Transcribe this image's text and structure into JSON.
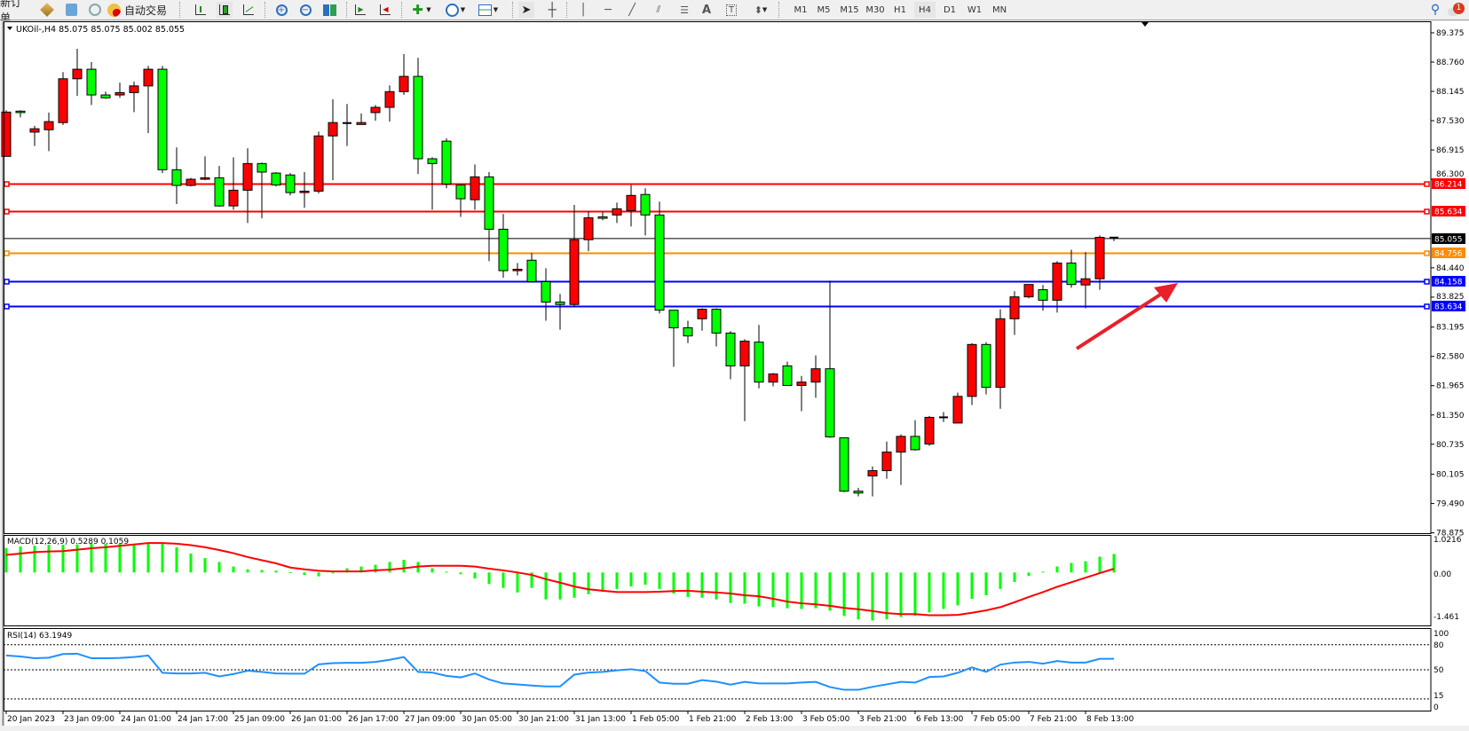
{
  "toolbar": {
    "new_order": "新订单",
    "auto_trading": "自动交易",
    "icons": [
      "metaeditor-icon",
      "data-window-icon",
      "signals-icon",
      "auto-trading-icon",
      "bar-chart-icon",
      "candlestick-icon",
      "line-chart-icon",
      "zoom-in-icon",
      "zoom-out-icon",
      "tile-windows-icon",
      "auto-scroll-icon",
      "chart-shift-icon",
      "indicators-icon",
      "periods-icon",
      "templates-icon",
      "cursor-icon",
      "crosshair-icon",
      "vertical-line-icon",
      "horizontal-line-icon",
      "trendline-icon",
      "equidistant-channel-icon",
      "fibonacci-icon",
      "text-icon",
      "text-label-icon",
      "arrows-icon",
      "search-icon",
      "notifications-icon"
    ],
    "timeframes": [
      "M1",
      "M5",
      "M15",
      "M30",
      "H1",
      "H4",
      "D1",
      "W1",
      "MN"
    ],
    "active_timeframe": "H4",
    "notification_count": "1"
  },
  "chart": {
    "header": "UKOil-,H4  85.075 85.075 85.002 85.055",
    "symbol": "UKOil-",
    "timeframe": "H4",
    "ohlc": {
      "open": 85.075,
      "high": 85.075,
      "low": 85.002,
      "close": 85.055
    },
    "colors": {
      "bull": "#ff0000",
      "bear": "#00ff00",
      "outline": "#000000"
    },
    "price_axis": [
      "89.375",
      "88.760",
      "88.145",
      "87.530",
      "86.915",
      "86.300",
      "84.440",
      "83.825",
      "83.195",
      "82.580",
      "81.965",
      "81.350",
      "80.735",
      "80.105",
      "79.490",
      "78.875"
    ],
    "levels": [
      {
        "price": "86.214",
        "color": "#ff0000"
      },
      {
        "price": "85.634",
        "color": "#ff0000"
      },
      {
        "price": "84.756",
        "color": "#ff8c00"
      },
      {
        "price": "84.158",
        "color": "#0000ff"
      },
      {
        "price": "83.634",
        "color": "#0000ff"
      }
    ],
    "current_price": "85.055",
    "annotation_arrow": {
      "color": "#e8202a",
      "direction": "up-right"
    },
    "time_axis": [
      "20 Jan 2023",
      "23 Jan 09:00",
      "24 Jan 01:00",
      "24 Jan 17:00",
      "25 Jan 09:00",
      "26 Jan 01:00",
      "26 Jan 17:00",
      "27 Jan 09:00",
      "30 Jan 05:00",
      "30 Jan 21:00",
      "31 Jan 13:00",
      "1 Feb 05:00",
      "1 Feb 21:00",
      "2 Feb 13:00",
      "3 Feb 05:00",
      "3 Feb 21:00",
      "6 Feb 13:00",
      "7 Feb 05:00",
      "7 Feb 21:00",
      "8 Feb 13:00"
    ]
  },
  "chart_data": [
    {
      "type": "candlestick",
      "fields": [
        "open",
        "high",
        "low",
        "close"
      ],
      "ylim": [
        78.875,
        89.375
      ],
      "candles": [
        [
          86.78,
          87.75,
          86.78,
          87.71
        ],
        [
          87.73,
          87.75,
          87.6,
          87.7
        ],
        [
          87.29,
          87.42,
          87.0,
          87.36
        ],
        [
          87.34,
          87.7,
          86.89,
          87.51
        ],
        [
          87.49,
          88.55,
          87.44,
          88.41
        ],
        [
          88.41,
          89.04,
          88.05,
          88.61
        ],
        [
          88.61,
          88.76,
          87.86,
          88.07
        ],
        [
          88.07,
          88.14,
          87.99,
          88.01
        ],
        [
          88.07,
          88.33,
          88.01,
          88.12
        ],
        [
          88.12,
          88.35,
          87.71,
          88.26
        ],
        [
          88.26,
          88.68,
          87.27,
          88.61
        ],
        [
          88.61,
          88.68,
          86.43,
          86.5
        ],
        [
          86.5,
          86.97,
          85.78,
          86.17
        ],
        [
          86.17,
          86.33,
          86.15,
          86.3
        ],
        [
          86.3,
          86.78,
          86.28,
          86.33
        ],
        [
          86.33,
          86.58,
          85.72,
          85.74
        ],
        [
          85.74,
          86.76,
          85.66,
          86.07
        ],
        [
          86.07,
          86.95,
          85.38,
          86.63
        ],
        [
          86.63,
          86.65,
          85.48,
          86.45
        ],
        [
          86.43,
          86.45,
          86.15,
          86.18
        ],
        [
          86.39,
          86.43,
          85.96,
          86.02
        ],
        [
          86.02,
          86.45,
          85.7,
          86.05
        ],
        [
          86.05,
          87.3,
          86.0,
          87.21
        ],
        [
          87.21,
          87.98,
          86.28,
          87.49
        ],
        [
          87.47,
          87.88,
          87.0,
          87.48
        ],
        [
          87.45,
          87.68,
          87.45,
          87.49
        ],
        [
          87.7,
          87.86,
          87.53,
          87.81
        ],
        [
          87.81,
          88.27,
          87.51,
          88.14
        ],
        [
          88.14,
          88.93,
          88.07,
          88.46
        ],
        [
          88.46,
          88.85,
          86.41,
          86.73
        ],
        [
          86.73,
          86.76,
          85.66,
          86.63
        ],
        [
          87.1,
          87.16,
          86.11,
          86.2
        ],
        [
          86.18,
          86.2,
          85.51,
          85.89
        ],
        [
          85.87,
          86.61,
          85.66,
          86.35
        ],
        [
          86.35,
          86.45,
          84.58,
          85.25
        ],
        [
          85.25,
          85.57,
          84.23,
          84.38
        ],
        [
          84.38,
          84.54,
          84.28,
          84.41
        ],
        [
          84.6,
          84.75,
          84.13,
          84.15
        ],
        [
          84.15,
          84.43,
          83.33,
          83.72
        ],
        [
          83.72,
          83.89,
          83.14,
          83.67
        ],
        [
          83.67,
          85.76,
          83.61,
          85.03
        ],
        [
          85.03,
          85.62,
          84.79,
          85.49
        ],
        [
          85.51,
          85.61,
          85.44,
          85.48
        ],
        [
          85.55,
          85.81,
          85.38,
          85.68
        ],
        [
          85.64,
          86.18,
          85.31,
          85.96
        ],
        [
          85.98,
          86.11,
          85.12,
          85.55
        ],
        [
          85.55,
          85.83,
          83.48,
          83.55
        ],
        [
          83.55,
          83.55,
          82.36,
          83.18
        ],
        [
          83.18,
          83.33,
          82.86,
          83.01
        ],
        [
          83.37,
          83.59,
          83.12,
          83.57
        ],
        [
          83.57,
          83.59,
          82.79,
          83.07
        ],
        [
          83.07,
          83.11,
          82.1,
          82.38
        ],
        [
          82.38,
          82.94,
          81.22,
          82.9
        ],
        [
          82.88,
          83.24,
          81.91,
          82.04
        ],
        [
          82.04,
          82.23,
          81.95,
          82.21
        ],
        [
          82.38,
          82.47,
          81.97,
          81.97
        ],
        [
          81.97,
          82.17,
          81.43,
          82.04
        ],
        [
          82.04,
          82.6,
          81.71,
          82.32
        ],
        [
          82.32,
          84.17,
          80.87,
          80.89
        ],
        [
          80.87,
          80.87,
          79.73,
          79.75
        ],
        [
          79.75,
          79.82,
          79.64,
          79.71
        ],
        [
          80.07,
          80.27,
          79.64,
          80.18
        ],
        [
          80.18,
          80.79,
          80.01,
          80.57
        ],
        [
          80.57,
          80.94,
          79.88,
          80.9
        ],
        [
          80.9,
          81.24,
          80.6,
          80.62
        ],
        [
          80.74,
          81.33,
          80.7,
          81.3
        ],
        [
          81.3,
          81.41,
          81.2,
          81.3
        ],
        [
          81.18,
          81.82,
          81.18,
          81.74
        ],
        [
          81.74,
          82.86,
          81.56,
          82.83
        ],
        [
          82.83,
          82.88,
          81.78,
          81.93
        ],
        [
          81.93,
          83.57,
          81.48,
          83.37
        ],
        [
          83.37,
          83.95,
          83.03,
          83.83
        ],
        [
          83.83,
          84.09,
          83.8,
          84.09
        ],
        [
          83.98,
          84.08,
          83.54,
          83.76
        ],
        [
          83.76,
          84.58,
          83.5,
          84.54
        ],
        [
          84.54,
          84.82,
          84.02,
          84.09
        ],
        [
          84.08,
          84.77,
          83.59,
          84.21
        ],
        [
          84.21,
          85.12,
          83.98,
          85.08
        ],
        [
          85.075,
          85.075,
          85.002,
          85.055
        ]
      ]
    },
    {
      "type": "bar+line",
      "title": "MACD(12,26,9) 0.5289 0.1059",
      "ylim": [
        -1.461,
        1.0216
      ],
      "axis_labels": [
        "1.0216",
        "0.00",
        "-1.461"
      ],
      "histogram_color": "#00ff00",
      "signal_color": "#ff0000",
      "histogram": [
        0.7,
        0.74,
        0.76,
        0.79,
        0.79,
        0.8,
        0.82,
        0.82,
        0.82,
        0.82,
        0.82,
        0.82,
        0.72,
        0.54,
        0.41,
        0.3,
        0.17,
        0.09,
        0.07,
        0.05,
        0.01,
        -0.07,
        -0.11,
        -0.02,
        0.12,
        0.17,
        0.22,
        0.3,
        0.36,
        0.3,
        0.12,
        0.02,
        -0.05,
        -0.17,
        -0.33,
        -0.44,
        -0.57,
        -0.44,
        -0.77,
        -0.77,
        -0.72,
        -0.62,
        -0.55,
        -0.47,
        -0.4,
        -0.35,
        -0.47,
        -0.6,
        -0.7,
        -0.72,
        -0.77,
        -0.87,
        -0.89,
        -0.97,
        -0.99,
        -1.02,
        -1.04,
        -1.02,
        -1.09,
        -1.24,
        -1.34,
        -1.37,
        -1.34,
        -1.27,
        -1.24,
        -1.14,
        -1.04,
        -0.94,
        -0.75,
        -0.65,
        -0.47,
        -0.27,
        -0.1,
        0.02,
        0.17,
        0.27,
        0.32,
        0.45,
        0.5289
      ],
      "signal": [
        0.5,
        0.54,
        0.58,
        0.6,
        0.61,
        0.65,
        0.69,
        0.72,
        0.76,
        0.8,
        0.84,
        0.84,
        0.82,
        0.78,
        0.72,
        0.64,
        0.55,
        0.44,
        0.35,
        0.26,
        0.14,
        0.09,
        0.05,
        0.03,
        0.03,
        0.03,
        0.06,
        0.08,
        0.12,
        0.17,
        0.19,
        0.19,
        0.19,
        0.17,
        0.11,
        0.06,
        0.0,
        -0.07,
        -0.19,
        -0.29,
        -0.4,
        -0.48,
        -0.52,
        -0.56,
        -0.56,
        -0.56,
        -0.55,
        -0.53,
        -0.52,
        -0.55,
        -0.57,
        -0.6,
        -0.65,
        -0.68,
        -0.75,
        -0.83,
        -0.88,
        -0.91,
        -0.95,
        -1.01,
        -1.05,
        -1.1,
        -1.16,
        -1.19,
        -1.19,
        -1.22,
        -1.22,
        -1.21,
        -1.15,
        -1.08,
        -0.99,
        -0.85,
        -0.7,
        -0.56,
        -0.41,
        -0.28,
        -0.15,
        -0.02,
        0.1059
      ]
    },
    {
      "type": "line",
      "title": "RSI(14) 63.1949",
      "ylim": [
        0,
        100
      ],
      "axis_labels": [
        "100",
        "80",
        "50",
        "15",
        "0"
      ],
      "levels": [
        80,
        50,
        15
      ],
      "color": "#1e90ff",
      "values": [
        67.1,
        66.0,
        63.8,
        64.5,
        68.9,
        69.3,
        63.8,
        63.8,
        64.2,
        65.3,
        67.1,
        46.4,
        45.6,
        45.6,
        46.4,
        42.0,
        44.9,
        48.9,
        47.5,
        45.6,
        45.3,
        45.3,
        56.5,
        58.0,
        58.4,
        58.4,
        59.5,
        62.0,
        65.3,
        47.5,
        46.7,
        42.7,
        40.9,
        45.6,
        38.4,
        33.6,
        32.5,
        31.1,
        30.0,
        30.0,
        44.2,
        46.7,
        47.5,
        49.3,
        50.7,
        48.5,
        34.7,
        33.3,
        33.3,
        37.6,
        35.8,
        32.2,
        35.5,
        33.6,
        33.6,
        33.6,
        34.7,
        35.5,
        29.3,
        26.0,
        26.0,
        29.6,
        32.5,
        35.5,
        34.7,
        41.3,
        42.0,
        46.4,
        52.9,
        47.5,
        56.2,
        58.7,
        59.5,
        57.3,
        60.5,
        58.7,
        58.7,
        63.1,
        63.1949
      ]
    }
  ]
}
